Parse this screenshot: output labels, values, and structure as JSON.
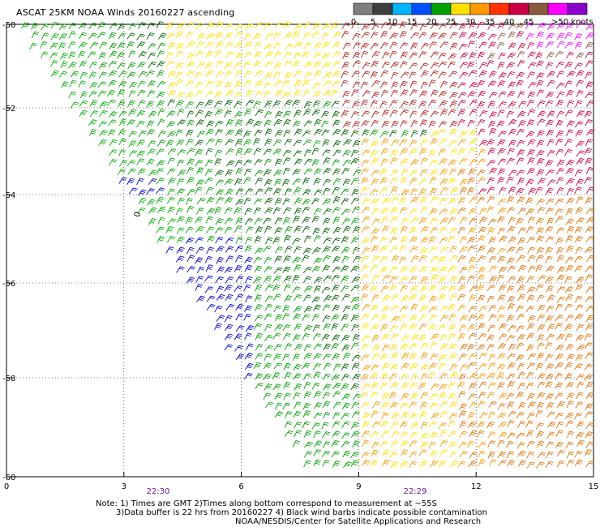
{
  "title": "ASCAT 25KM NOAA Winds 20160227 ascending",
  "legend": {
    "colors": [
      "#7f7f7f",
      "#3f3f3f",
      "#00b4ff",
      "#0050ff",
      "#00a000",
      "#ffe000",
      "#ff9900",
      "#ff3300",
      "#cc0044",
      "#8a5a3c",
      "#ff00ff",
      "#8a00cc"
    ],
    "labels": [
      "0",
      "5",
      "10",
      "15",
      "20",
      "25",
      "30",
      "35",
      "40",
      "45",
      ">50 knots"
    ]
  },
  "axes": {
    "y_labels": [
      "-50",
      "-52",
      "-54",
      "-56",
      "-58",
      "-60"
    ],
    "x_labels": [
      "0",
      "3",
      "6",
      "9",
      "12",
      "15"
    ]
  },
  "time_labels": [
    "22:30",
    "22:29"
  ],
  "notes": {
    "line1": "Note: 1) Times are GMT 2)Times along bottom correspond to measurement at ~55S",
    "line2": "3)Data buffer is 22 hrs from 20160227 4) Black wind barbs indicate possible contamination",
    "line3": "NOAA/NESDIS/Center for Satellite Applications and Research"
  },
  "marker": "0"
}
